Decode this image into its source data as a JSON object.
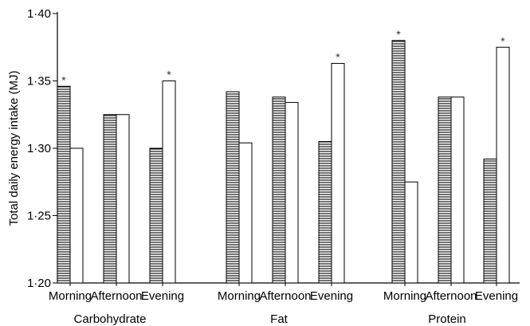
{
  "chart_data": {
    "type": "bar",
    "title": "",
    "ylabel": "Total daily energy intake (MJ)",
    "xlabel": "",
    "ylim": [
      1.2,
      1.4
    ],
    "yticks": [
      "1·20",
      "1·25",
      "1·30",
      "1·35",
      "1·40"
    ],
    "ytick_values": [
      1.2,
      1.25,
      1.3,
      1.35,
      1.4
    ],
    "groups": [
      {
        "name": "Carbohydrate",
        "subgroups": [
          {
            "label": "Morning",
            "hatched": 1.346,
            "open": 1.3,
            "star": "hatched"
          },
          {
            "label": "Afternoon",
            "hatched": 1.325,
            "open": 1.325,
            "star": ""
          },
          {
            "label": "Evening",
            "hatched": 1.3,
            "open": 1.35,
            "star": "open"
          }
        ]
      },
      {
        "name": "Fat",
        "subgroups": [
          {
            "label": "Morning",
            "hatched": 1.342,
            "open": 1.304,
            "star": ""
          },
          {
            "label": "Afternoon",
            "hatched": 1.338,
            "open": 1.334,
            "star": ""
          },
          {
            "label": "Evening",
            "hatched": 1.305,
            "open": 1.363,
            "star": "open"
          }
        ]
      },
      {
        "name": "Protein",
        "subgroups": [
          {
            "label": "Morning",
            "hatched": 1.38,
            "open": 1.275,
            "star": "hatched"
          },
          {
            "label": "Afternoon",
            "hatched": 1.338,
            "open": 1.338,
            "star": ""
          },
          {
            "label": "Evening",
            "hatched": 1.292,
            "open": 1.375,
            "star": "open"
          }
        ]
      }
    ],
    "star_symbol": "*",
    "grid": false,
    "legend": "none",
    "colors": {
      "hatched_fill": "#ffffff",
      "hatch_line": "#000000",
      "open_fill": "#ffffff"
    }
  }
}
